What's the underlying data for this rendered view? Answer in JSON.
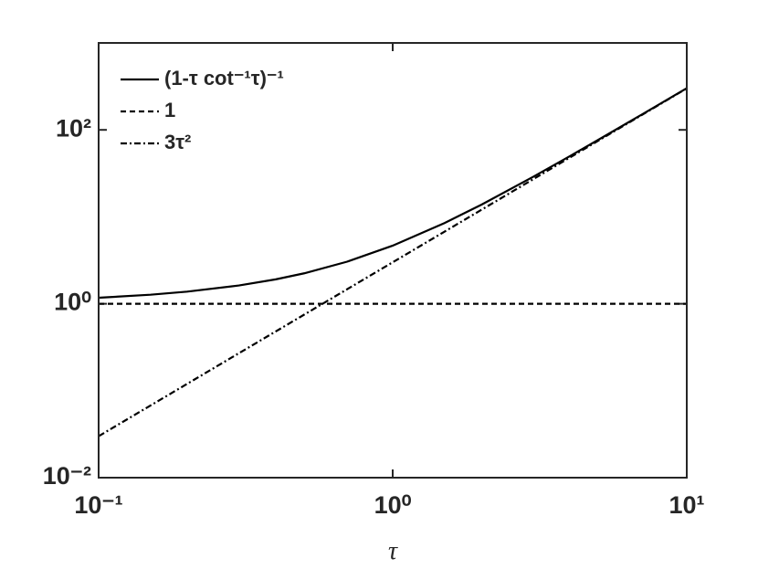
{
  "chart_data": {
    "type": "line",
    "x": [
      0.1,
      0.15,
      0.2,
      0.3,
      0.4,
      0.5,
      0.7,
      1,
      1.5,
      2,
      3,
      4,
      5,
      7,
      10
    ],
    "series": [
      {
        "name": "(1-τ cot⁻¹τ)⁻¹",
        "color": "#000000",
        "linestyle": "solid",
        "values": [
          1.1725,
          1.2711,
          1.3787,
          1.6228,
          1.9088,
          2.24,
          3.0493,
          4.6598,
          8.4746,
          13.755,
          28.78,
          49.79,
          76.79,
          148.8,
          301.8
        ]
      },
      {
        "name": "1",
        "color": "#000000",
        "linestyle": "dashed",
        "values": [
          1,
          1,
          1,
          1,
          1,
          1,
          1,
          1,
          1,
          1,
          1,
          1,
          1,
          1,
          1
        ]
      },
      {
        "name": "3τ²",
        "color": "#000000",
        "linestyle": "dashdot",
        "values": [
          0.03,
          0.0675,
          0.12,
          0.27,
          0.48,
          0.75,
          1.47,
          3,
          6.75,
          12,
          27,
          48,
          75,
          147,
          300
        ]
      }
    ],
    "x_label": "τ",
    "xlog": true,
    "ylog": true,
    "xlim": [
      0.1,
      10
    ],
    "ylim": [
      0.01,
      1000
    ],
    "xticks": [
      {
        "value": 0.1,
        "label": "10⁻¹"
      },
      {
        "value": 1,
        "label": "10⁰"
      },
      {
        "value": 10,
        "label": "10¹"
      }
    ],
    "yticks": [
      {
        "value": 0.01,
        "label": "10⁻²"
      },
      {
        "value": 1,
        "label": "10⁰"
      },
      {
        "value": 100,
        "label": "10²"
      }
    ],
    "legend": "top-left"
  }
}
